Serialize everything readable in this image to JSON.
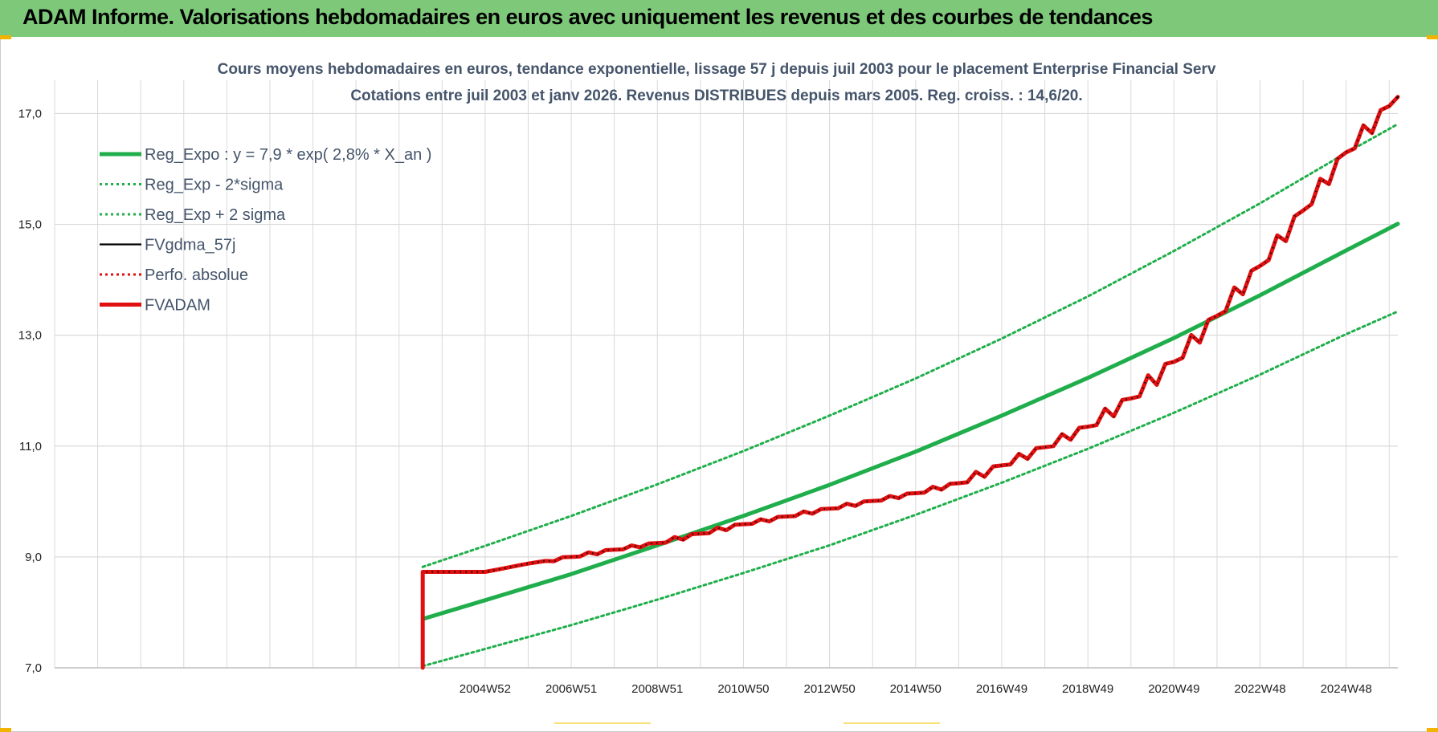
{
  "header": {
    "title": "ADAM Informe. Valorisations hebdomadaires en euros avec uniquement les revenus et des courbes de tendances"
  },
  "colors": {
    "header_bg": "#7ec87a",
    "reg_expo": "#1fae4b",
    "sigma": "#1fae4b",
    "fvgdma": "#000000",
    "perfo": "#e01010",
    "fvadam": "#e01010",
    "grid": "#d9d9d9"
  },
  "chart_data": {
    "type": "line",
    "title": "Cours moyens hebdomadaires en euros, tendance exponentielle, lissage 57 j depuis juil 2003 pour le placement Enterprise Financial Serv",
    "subtitle": "Cotations entre juil 2003 et janv 2026. Revenus DISTRIBUES depuis mars 2005. Reg. croiss. : 14,6/20.",
    "ylim": [
      7.0,
      17.6
    ],
    "xlim": [
      1995.0,
      2026.2
    ],
    "y_ticks": [
      "7,0",
      "9,0",
      "11,0",
      "13,0",
      "15,0",
      "17,0"
    ],
    "y_tick_values": [
      7,
      9,
      11,
      13,
      15,
      17
    ],
    "x_ticks": [
      "2004W52",
      "2006W51",
      "2008W51",
      "2010W50",
      "2012W50",
      "2014W50",
      "2016W49",
      "2018W49",
      "2020W49",
      "2022W48",
      "2024W48"
    ],
    "x_tick_values": [
      2005.0,
      2007.0,
      2009.0,
      2011.0,
      2013.0,
      2015.0,
      2017.0,
      2019.0,
      2021.0,
      2023.0,
      2025.0
    ],
    "legend_position": "top-left",
    "grid": true,
    "series": [
      {
        "name": "Reg_Expo : y = 7,9 * exp( 2,8% *  X_an )",
        "style": "solid-thick",
        "color": "#1fae4b",
        "x": [
          2003.55,
          2005.0,
          2007.0,
          2009.0,
          2011.0,
          2013.0,
          2015.0,
          2017.0,
          2019.0,
          2021.0,
          2023.0,
          2025.0,
          2026.2
        ],
        "y": [
          7.88,
          8.22,
          8.69,
          9.21,
          9.74,
          10.3,
          10.9,
          11.55,
          12.23,
          12.95,
          13.72,
          14.53,
          15.01
        ]
      },
      {
        "name": "Reg_Exp - 2*sigma",
        "style": "dotted",
        "color": "#1fae4b",
        "x": [
          2003.55,
          2005.0,
          2007.0,
          2009.0,
          2011.0,
          2013.0,
          2015.0,
          2017.0,
          2019.0,
          2021.0,
          2023.0,
          2025.0,
          2026.2
        ],
        "y": [
          7.03,
          7.34,
          7.77,
          8.23,
          8.71,
          9.21,
          9.76,
          10.34,
          10.95,
          11.6,
          12.29,
          13.02,
          13.43
        ]
      },
      {
        "name": "Reg_Exp + 2 sigma",
        "style": "dotted",
        "color": "#1fae4b",
        "x": [
          2003.55,
          2005.0,
          2007.0,
          2009.0,
          2011.0,
          2013.0,
          2015.0,
          2017.0,
          2019.0,
          2021.0,
          2023.0,
          2025.0,
          2026.2
        ],
        "y": [
          8.82,
          9.2,
          9.74,
          10.31,
          10.91,
          11.55,
          12.22,
          12.94,
          13.7,
          14.52,
          15.38,
          16.29,
          16.81
        ]
      },
      {
        "name": "FVgdma_57j",
        "style": "solid",
        "color": "#000000",
        "x": [
          2003.55,
          2005.0,
          2006.0,
          2007.0,
          2008.0,
          2009.0,
          2010.0,
          2011.0,
          2012.0,
          2013.0,
          2014.0,
          2015.0,
          2016.0,
          2017.0,
          2018.0,
          2019.0,
          2020.0,
          2021.0,
          2022.0,
          2023.0,
          2024.0,
          2025.0,
          2026.2
        ],
        "y": [
          8.73,
          8.73,
          8.88,
          9.0,
          9.13,
          9.25,
          9.42,
          9.59,
          9.73,
          9.87,
          10.01,
          10.15,
          10.33,
          10.65,
          10.98,
          11.35,
          11.86,
          12.52,
          13.35,
          14.25,
          15.25,
          16.3,
          17.3
        ]
      },
      {
        "name": "Perfo. absolue",
        "style": "dotted",
        "color": "#e01010",
        "x": [
          2003.55,
          2005.0,
          2006.0,
          2007.0,
          2008.0,
          2009.0,
          2010.0,
          2011.0,
          2012.0,
          2013.0,
          2014.0,
          2015.0,
          2016.0,
          2017.0,
          2018.0,
          2019.0,
          2020.0,
          2021.0,
          2022.0,
          2023.0,
          2024.0,
          2025.0,
          2026.2
        ],
        "y": [
          8.73,
          8.73,
          8.88,
          9.0,
          9.13,
          9.25,
          9.42,
          9.59,
          9.73,
          9.87,
          10.01,
          10.15,
          10.33,
          10.65,
          10.98,
          11.35,
          11.86,
          12.52,
          13.35,
          14.25,
          15.25,
          16.3,
          17.3
        ]
      },
      {
        "name": "FVADAM",
        "style": "solid-thick",
        "color": "#e01010",
        "x": [
          2003.55,
          2003.55,
          2005.0,
          2006.0,
          2007.0,
          2008.0,
          2009.0,
          2010.0,
          2011.0,
          2012.0,
          2013.0,
          2014.0,
          2015.0,
          2016.0,
          2017.0,
          2018.0,
          2019.0,
          2020.0,
          2021.0,
          2022.0,
          2023.0,
          2024.0,
          2025.0,
          2026.2
        ],
        "y": [
          7.0,
          8.73,
          8.73,
          8.88,
          9.0,
          9.13,
          9.25,
          9.42,
          9.59,
          9.73,
          9.87,
          10.01,
          10.15,
          10.33,
          10.65,
          10.98,
          11.35,
          11.86,
          12.52,
          13.35,
          14.25,
          15.25,
          16.3,
          17.3
        ]
      }
    ]
  }
}
